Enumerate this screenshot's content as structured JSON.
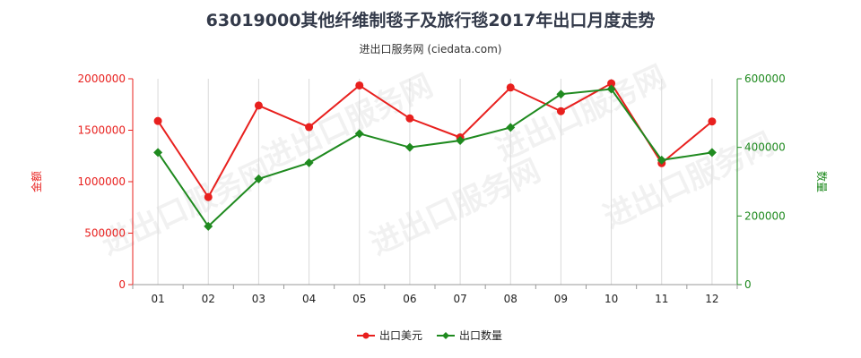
{
  "chart_data": {
    "type": "line",
    "title": "63019000其他纤维制毯子及旅行毯2017年出口月度走势",
    "subtitle": "进出口服务网 (ciedata.com)",
    "categories": [
      "01",
      "02",
      "03",
      "04",
      "05",
      "06",
      "07",
      "08",
      "09",
      "10",
      "11",
      "12"
    ],
    "series": [
      {
        "name": "出口美元",
        "axis": "left",
        "color": "#e8201e",
        "values": [
          1590000,
          850000,
          1740000,
          1530000,
          1935000,
          1615000,
          1430000,
          1915000,
          1685000,
          1955000,
          1180000,
          1585000
        ]
      },
      {
        "name": "出口数量",
        "axis": "right",
        "color": "#1f8a1f",
        "values": [
          385000,
          170000,
          308000,
          355000,
          440000,
          400000,
          420000,
          458000,
          555000,
          570000,
          363000,
          385000
        ]
      }
    ],
    "y_left": {
      "label": "金额",
      "ylim": [
        0,
        2000000
      ],
      "ticks": [
        "0",
        "500000",
        "1000000",
        "1500000",
        "2000000"
      ],
      "color": "#e8201e"
    },
    "y_right": {
      "label": "数量",
      "ylim": [
        0,
        600000
      ],
      "ticks": [
        "0",
        "200000",
        "400000",
        "600000"
      ],
      "color": "#1f8a1f"
    },
    "grid": "vertical",
    "legend_position": "bottom-center",
    "watermark": "进出口服务网"
  }
}
